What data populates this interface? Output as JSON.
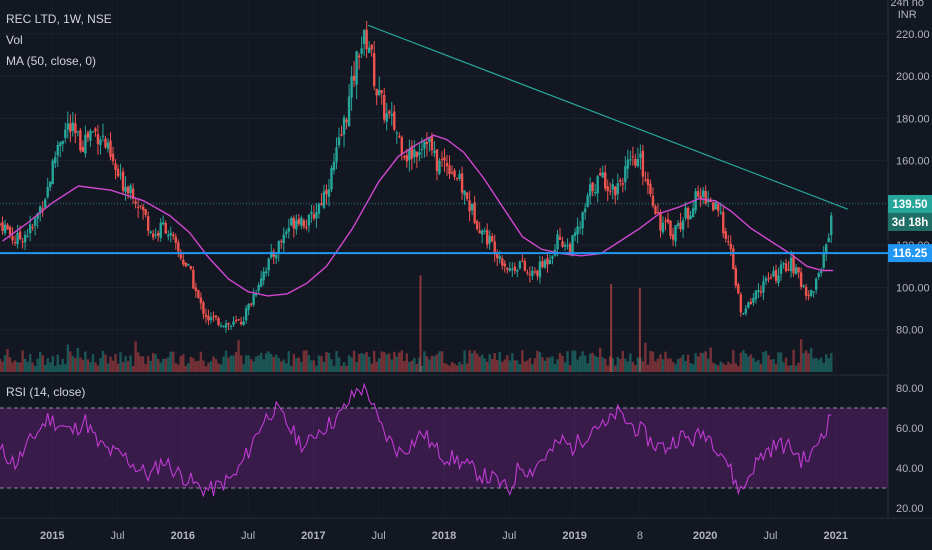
{
  "header": {
    "title": "REC LTD, 1W, NSE",
    "vol_label": "Vol",
    "ma_label": "MA (50, close, 0)",
    "rsi_label": "RSI (14, close)",
    "axis_unit_top": "24h no",
    "axis_unit": "INR"
  },
  "tags": {
    "last_price": "139.50",
    "countdown": "3d 18h",
    "level": "116.25"
  },
  "colors": {
    "background": "#131722",
    "up": "#26a69a",
    "down": "#ef5350",
    "ma": "#d048d0",
    "rsi": "#9c27b0",
    "level": "#2196f3",
    "trend": "#26a69a"
  },
  "chart_data": [
    {
      "type": "candlestick",
      "title": "REC LTD, 1W, NSE",
      "ylim": [
        60,
        236
      ],
      "y_ticks": [
        80,
        100,
        120,
        140,
        160,
        180,
        200,
        220
      ],
      "y_tick_labels": [
        "80.00",
        "100.00",
        "120.00",
        "140.00",
        "160.00",
        "180.00",
        "200.00",
        "220.00"
      ],
      "x_tick_labels": [
        "2015",
        "Jul",
        "2016",
        "Jul",
        "2017",
        "Jul",
        "2018",
        "Jul",
        "2019",
        "8",
        "2020",
        "Jul",
        "2021"
      ],
      "x_tick_dates": [
        2015.0,
        2015.5,
        2016.0,
        2016.5,
        2017.0,
        2017.5,
        2018.0,
        2018.5,
        2019.0,
        2019.5,
        2020.0,
        2020.5,
        2021.0
      ],
      "date_range": [
        2014.6,
        2021.4
      ],
      "close_path": [
        [
          2014.62,
          130
        ],
        [
          2014.72,
          122
        ],
        [
          2014.85,
          128
        ],
        [
          2014.97,
          148
        ],
        [
          2015.05,
          170
        ],
        [
          2015.12,
          176
        ],
        [
          2015.22,
          168
        ],
        [
          2015.3,
          174
        ],
        [
          2015.38,
          172
        ],
        [
          2015.45,
          160
        ],
        [
          2015.52,
          150
        ],
        [
          2015.6,
          148
        ],
        [
          2015.7,
          135
        ],
        [
          2015.78,
          124
        ],
        [
          2015.86,
          130
        ],
        [
          2015.95,
          118
        ],
        [
          2016.05,
          108
        ],
        [
          2016.13,
          92
        ],
        [
          2016.2,
          85
        ],
        [
          2016.28,
          84
        ],
        [
          2016.37,
          82
        ],
        [
          2016.45,
          84
        ],
        [
          2016.52,
          93
        ],
        [
          2016.6,
          106
        ],
        [
          2016.7,
          116
        ],
        [
          2016.8,
          128
        ],
        [
          2016.88,
          134
        ],
        [
          2016.96,
          130
        ],
        [
          2017.05,
          140
        ],
        [
          2017.13,
          152
        ],
        [
          2017.2,
          168
        ],
        [
          2017.28,
          190
        ],
        [
          2017.35,
          214
        ],
        [
          2017.42,
          218
        ],
        [
          2017.48,
          194
        ],
        [
          2017.55,
          182
        ],
        [
          2017.62,
          176
        ],
        [
          2017.72,
          162
        ],
        [
          2017.8,
          166
        ],
        [
          2017.87,
          172
        ],
        [
          2017.94,
          158
        ],
        [
          2018.02,
          160
        ],
        [
          2018.1,
          152
        ],
        [
          2018.2,
          138
        ],
        [
          2018.3,
          126
        ],
        [
          2018.4,
          118
        ],
        [
          2018.5,
          108
        ],
        [
          2018.58,
          112
        ],
        [
          2018.65,
          105
        ],
        [
          2018.72,
          108
        ],
        [
          2018.8,
          114
        ],
        [
          2018.88,
          124
        ],
        [
          2018.96,
          118
        ],
        [
          2019.05,
          130
        ],
        [
          2019.13,
          148
        ],
        [
          2019.22,
          152
        ],
        [
          2019.3,
          146
        ],
        [
          2019.4,
          156
        ],
        [
          2019.5,
          160
        ],
        [
          2019.58,
          146
        ],
        [
          2019.66,
          130
        ],
        [
          2019.75,
          126
        ],
        [
          2019.85,
          134
        ],
        [
          2019.93,
          142
        ],
        [
          2020.0,
          144
        ],
        [
          2020.07,
          138
        ],
        [
          2020.15,
          128
        ],
        [
          2020.22,
          108
        ],
        [
          2020.28,
          85
        ],
        [
          2020.35,
          94
        ],
        [
          2020.45,
          102
        ],
        [
          2020.55,
          106
        ],
        [
          2020.65,
          112
        ],
        [
          2020.72,
          104
        ],
        [
          2020.8,
          96
        ],
        [
          2020.86,
          104
        ],
        [
          2020.92,
          118
        ],
        [
          2020.96,
          132
        ],
        [
          2020.98,
          139.5
        ]
      ],
      "ma50": [
        [
          2014.62,
          122
        ],
        [
          2014.8,
          130
        ],
        [
          2015.0,
          140
        ],
        [
          2015.2,
          148
        ],
        [
          2015.45,
          146
        ],
        [
          2015.7,
          141
        ],
        [
          2015.9,
          134
        ],
        [
          2016.05,
          126
        ],
        [
          2016.2,
          114
        ],
        [
          2016.35,
          104
        ],
        [
          2016.5,
          98
        ],
        [
          2016.65,
          96
        ],
        [
          2016.8,
          97
        ],
        [
          2016.95,
          102
        ],
        [
          2017.1,
          110
        ],
        [
          2017.3,
          128
        ],
        [
          2017.5,
          150
        ],
        [
          2017.65,
          162
        ],
        [
          2017.8,
          168
        ],
        [
          2017.92,
          172
        ],
        [
          2018.02,
          170
        ],
        [
          2018.15,
          164
        ],
        [
          2018.3,
          152
        ],
        [
          2018.45,
          138
        ],
        [
          2018.6,
          124
        ],
        [
          2018.75,
          118
        ],
        [
          2018.9,
          116
        ],
        [
          2019.05,
          115
        ],
        [
          2019.2,
          116
        ],
        [
          2019.35,
          122
        ],
        [
          2019.5,
          128
        ],
        [
          2019.65,
          135
        ],
        [
          2019.8,
          138
        ],
        [
          2019.95,
          142
        ],
        [
          2020.08,
          141
        ],
        [
          2020.2,
          136
        ],
        [
          2020.35,
          128
        ],
        [
          2020.5,
          122
        ],
        [
          2020.65,
          116
        ],
        [
          2020.78,
          110
        ],
        [
          2020.9,
          108
        ],
        [
          2020.98,
          108
        ]
      ],
      "trendline": [
        [
          2017.42,
          224
        ],
        [
          2021.0,
          138
        ]
      ],
      "level": 116.25,
      "last": 139.5,
      "volume_spikes": [
        [
          2017.82,
          46
        ],
        [
          2019.28,
          42
        ],
        [
          2019.5,
          40
        ]
      ]
    },
    {
      "type": "line",
      "title": "RSI (14, close)",
      "ylim": [
        15,
        85
      ],
      "y_ticks": [
        20,
        40,
        60,
        80
      ],
      "y_tick_labels": [
        "20.00",
        "40.00",
        "60.00",
        "80.00"
      ],
      "bands": [
        30,
        70
      ],
      "rsi_path": [
        [
          2014.62,
          48
        ],
        [
          2014.72,
          42
        ],
        [
          2014.85,
          55
        ],
        [
          2014.97,
          65
        ],
        [
          2015.05,
          62
        ],
        [
          2015.15,
          58
        ],
        [
          2015.25,
          64
        ],
        [
          2015.35,
          52
        ],
        [
          2015.45,
          48
        ],
        [
          2015.55,
          46
        ],
        [
          2015.65,
          40
        ],
        [
          2015.75,
          36
        ],
        [
          2015.85,
          44
        ],
        [
          2015.95,
          38
        ],
        [
          2016.05,
          34
        ],
        [
          2016.13,
          30
        ],
        [
          2016.22,
          29
        ],
        [
          2016.3,
          32
        ],
        [
          2016.4,
          36
        ],
        [
          2016.5,
          48
        ],
        [
          2016.6,
          62
        ],
        [
          2016.7,
          70
        ],
        [
          2016.78,
          64
        ],
        [
          2016.86,
          56
        ],
        [
          2016.94,
          50
        ],
        [
          2017.02,
          58
        ],
        [
          2017.12,
          62
        ],
        [
          2017.2,
          66
        ],
        [
          2017.28,
          74
        ],
        [
          2017.35,
          80
        ],
        [
          2017.42,
          78
        ],
        [
          2017.5,
          62
        ],
        [
          2017.58,
          54
        ],
        [
          2017.66,
          48
        ],
        [
          2017.75,
          52
        ],
        [
          2017.84,
          58
        ],
        [
          2017.92,
          50
        ],
        [
          2018.0,
          46
        ],
        [
          2018.1,
          44
        ],
        [
          2018.2,
          40
        ],
        [
          2018.3,
          36
        ],
        [
          2018.4,
          34
        ],
        [
          2018.5,
          28
        ],
        [
          2018.58,
          42
        ],
        [
          2018.66,
          38
        ],
        [
          2018.74,
          44
        ],
        [
          2018.82,
          48
        ],
        [
          2018.9,
          54
        ],
        [
          2018.98,
          50
        ],
        [
          2019.08,
          56
        ],
        [
          2019.16,
          62
        ],
        [
          2019.24,
          60
        ],
        [
          2019.32,
          68
        ],
        [
          2019.42,
          62
        ],
        [
          2019.52,
          58
        ],
        [
          2019.6,
          52
        ],
        [
          2019.7,
          50
        ],
        [
          2019.8,
          56
        ],
        [
          2019.9,
          54
        ],
        [
          2020.0,
          58
        ],
        [
          2020.08,
          52
        ],
        [
          2020.15,
          46
        ],
        [
          2020.22,
          34
        ],
        [
          2020.28,
          28
        ],
        [
          2020.36,
          40
        ],
        [
          2020.46,
          48
        ],
        [
          2020.56,
          52
        ],
        [
          2020.66,
          50
        ],
        [
          2020.74,
          44
        ],
        [
          2020.82,
          46
        ],
        [
          2020.88,
          56
        ],
        [
          2020.94,
          62
        ],
        [
          2020.98,
          70
        ]
      ]
    }
  ]
}
